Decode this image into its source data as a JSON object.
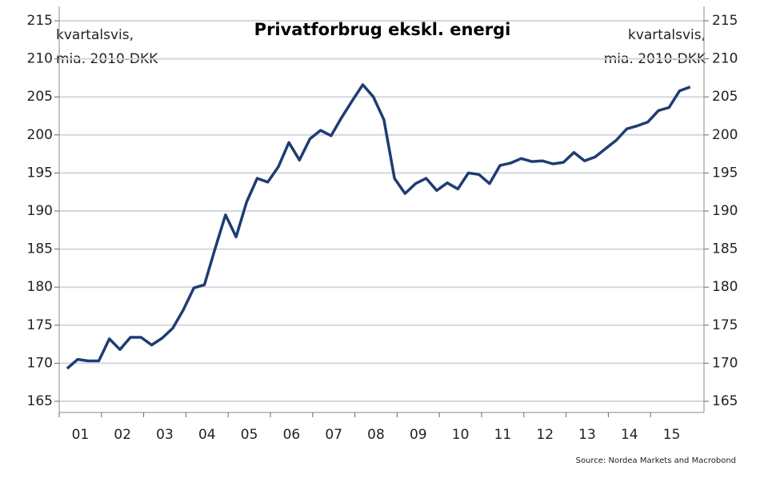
{
  "chart_data": {
    "type": "line",
    "title": "Privatforbrug ekskl. energi",
    "y_label_left": [
      "kvartalsvis,",
      "mia. 2010-DKK"
    ],
    "y_label_right": [
      "kvartalsvis,",
      "mia. 2010-DKK"
    ],
    "source": "Source: Nordea Markets and Macrobond",
    "categories": [
      "01",
      null,
      null,
      null,
      "02",
      null,
      null,
      null,
      "03",
      null,
      null,
      null,
      "04",
      null,
      null,
      null,
      "05",
      null,
      null,
      null,
      "06",
      null,
      null,
      null,
      "07",
      null,
      null,
      null,
      "08",
      null,
      null,
      null,
      "09",
      null,
      null,
      null,
      "10",
      null,
      null,
      null,
      "11",
      null,
      null,
      null,
      "12",
      null,
      null,
      null,
      "13",
      null,
      null,
      null,
      "14",
      null,
      null,
      null,
      "15",
      null,
      null,
      null
    ],
    "series": [
      {
        "name": "Privatforbrug ekskl. energi",
        "color": "#1f3d73",
        "values": [
          169.3,
          170.5,
          170.3,
          170.3,
          173.2,
          171.8,
          173.4,
          173.4,
          172.4,
          173.3,
          174.6,
          177.0,
          179.9,
          180.3,
          185.0,
          189.5,
          186.6,
          191.2,
          194.3,
          193.8,
          195.8,
          199.0,
          196.7,
          199.5,
          200.6,
          199.9,
          202.3,
          204.5,
          206.6,
          205.0,
          202.0,
          194.3,
          192.3,
          193.6,
          194.3,
          192.7,
          193.7,
          192.9,
          195.0,
          194.8,
          193.6,
          196.0,
          196.3,
          196.9,
          196.5,
          196.6,
          196.2,
          196.4,
          197.7,
          196.6,
          197.1,
          198.2,
          199.3,
          200.8,
          201.2,
          201.7,
          203.2,
          203.6,
          205.8,
          206.3
        ]
      }
    ],
    "ylim": [
      165,
      215
    ],
    "yticks": [
      165,
      170,
      175,
      180,
      185,
      190,
      195,
      200,
      205,
      210,
      215
    ],
    "y2lim": [
      165,
      215
    ],
    "y2ticks": [
      165,
      170,
      175,
      180,
      185,
      190,
      195,
      200,
      205,
      210,
      215
    ],
    "grid": true
  }
}
